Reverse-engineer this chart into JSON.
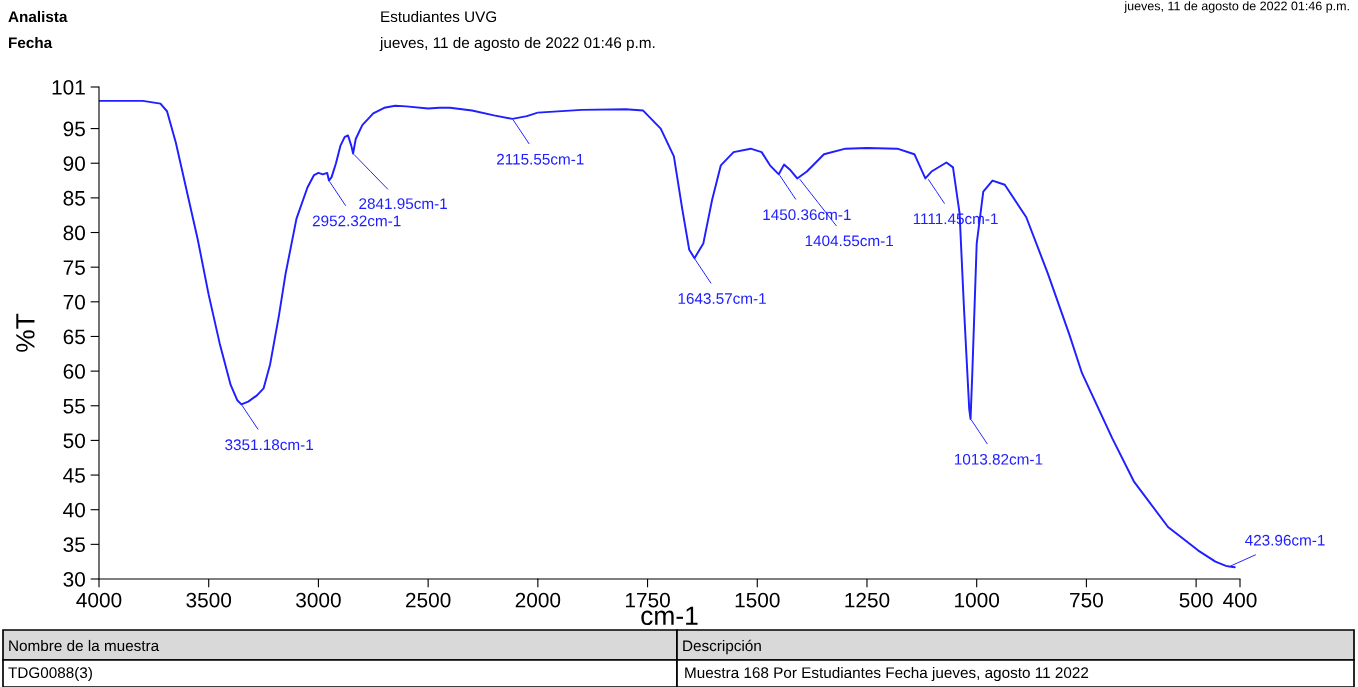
{
  "chart_data": [
    {
      "type": "line",
      "ylabel": "%T",
      "xlim": [
        4000,
        2000
      ],
      "xticks": [
        4000,
        3500,
        3000,
        2500,
        2000
      ],
      "ylim": [
        30,
        101
      ],
      "yticks": [
        30,
        35,
        40,
        45,
        50,
        55,
        60,
        65,
        70,
        75,
        80,
        85,
        90,
        95,
        101
      ],
      "grid": false,
      "legend": false,
      "series": [
        {
          "color": "#1f1fff",
          "x": [
            4000,
            3800,
            3720,
            3690,
            3650,
            3600,
            3550,
            3500,
            3450,
            3400,
            3370,
            3351,
            3320,
            3280,
            3250,
            3220,
            3180,
            3150,
            3100,
            3050,
            3020,
            3000,
            2980,
            2960,
            2952,
            2940,
            2920,
            2900,
            2880,
            2865,
            2850,
            2842,
            2830,
            2800,
            2750,
            2700,
            2650,
            2600,
            2500,
            2450,
            2400,
            2300,
            2200,
            2116,
            2050,
            2000
          ],
          "values": [
            99.0,
            99.0,
            98.6,
            97.5,
            93,
            86,
            79,
            71,
            64,
            58,
            55.8,
            55.2,
            55.6,
            56.5,
            57.5,
            61,
            68,
            74,
            82,
            86.5,
            88.3,
            88.6,
            88.4,
            88.6,
            87.5,
            88.0,
            90,
            92.5,
            93.8,
            94.0,
            92.5,
            91.4,
            93.5,
            95.5,
            97.2,
            98.0,
            98.3,
            98.2,
            97.9,
            98.0,
            98.0,
            97.6,
            96.9,
            96.4,
            96.8,
            97.3
          ]
        }
      ],
      "annotations": [
        {
          "text": "3351.18cm-1",
          "x": 3351.18,
          "y": 55.2
        },
        {
          "text": "2952.32cm-1",
          "x": 2952.32,
          "y": 87.5
        },
        {
          "text": "2841.95cm-1",
          "x": 2841.95,
          "y": 91.4
        },
        {
          "text": "2115.55cm-1",
          "x": 2115.55,
          "y": 96.4
        },
        "Analista",
        "Estudiantes UVG",
        "Fecha",
        "jueves, 11 de agosto de 2022 01:46 p.m.",
        "jueves, 11 de agosto de 2022 01:46 p.m.",
        "Nombre de la muestra",
        "Descripción",
        "TDG0088(3)",
        "Muestra 168 Por Estudiantes Fecha jueves, agosto 11 2022"
      ]
    },
    {
      "type": "line",
      "xlabel": "cm-1",
      "xlim": [
        2000,
        400
      ],
      "xticks": [
        1750,
        1500,
        1250,
        1000,
        750,
        500,
        400
      ],
      "ylim": [
        30,
        101
      ],
      "tick_labels": "x",
      "grid": false,
      "legend": false,
      "series": [
        {
          "color": "#1f1fff",
          "x": [
            2000,
            1900,
            1800,
            1760,
            1720,
            1690,
            1671,
            1655,
            1643,
            1623,
            1603,
            1583,
            1554,
            1515,
            1490,
            1471,
            1451,
            1439,
            1426,
            1409,
            1387,
            1348,
            1299,
            1250,
            1181,
            1142,
            1117,
            1103,
            1069,
            1054,
            1039,
            1029,
            1017,
            1014,
            1010,
            1000,
            985,
            964,
            936,
            887,
            838,
            789,
            760,
            691,
            642,
            564,
            495,
            456,
            432,
            424,
            412
          ],
          "values": [
            97.3,
            97.7,
            97.8,
            97.6,
            95,
            91,
            83.4,
            77.5,
            76.3,
            78.4,
            84.7,
            89.7,
            91.6,
            92.1,
            91.6,
            89.7,
            88.4,
            89.8,
            89.1,
            87.8,
            88.8,
            91.3,
            92.1,
            92.2,
            92.1,
            91.3,
            87.8,
            88.8,
            90.1,
            89.4,
            82.8,
            69.1,
            54.5,
            53.1,
            59.7,
            78.4,
            85.9,
            87.5,
            86.9,
            82.2,
            74.1,
            65.3,
            59.7,
            50.3,
            44.1,
            37.5,
            34.1,
            32.5,
            31.9,
            31.8,
            31.7
          ]
        }
      ],
      "annotations": [
        {
          "text": "1643.57cm-1",
          "x": 1643.57,
          "y": 76.3
        },
        {
          "text": "1450.36cm-1",
          "x": 1450.36,
          "y": 88.4
        },
        {
          "text": "1404.55cm-1",
          "x": 1404.55,
          "y": 87.8
        },
        {
          "text": "1111.45cm-1",
          "x": 1111.45,
          "y": 87.8
        },
        {
          "text": "1013.82cm-1",
          "x": 1013.82,
          "y": 53.1
        },
        {
          "text": "423.96cm-1",
          "x": 423.96,
          "y": 31.8
        }
      ]
    }
  ]
}
